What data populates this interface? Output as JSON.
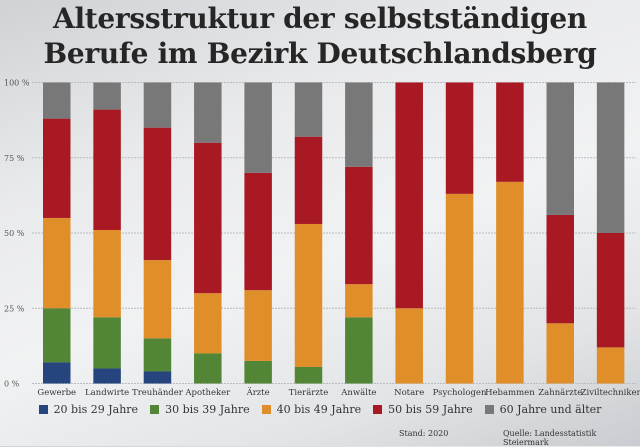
{
  "title": {
    "line1": "Altersstruktur der selbstständigen",
    "line2": "Berufe im Bezirk Deutschlandsberg"
  },
  "footer": {
    "stand": "Stand: 2020",
    "quelle": "Quelle: Landesstatistik Steiermark"
  },
  "chart_data": {
    "type": "bar",
    "stacked": true,
    "title": "Altersstruktur der selbstständigen Berufe im Bezirk Deutschlandsberg",
    "xlabel": "",
    "ylabel": "",
    "ylim": [
      0,
      100
    ],
    "yticks": [
      0,
      25,
      50,
      75,
      100
    ],
    "ytick_labels": [
      "0 %",
      "25 %",
      "50 %",
      "75 %",
      "100 %"
    ],
    "grid": true,
    "legend_position": "bottom",
    "categories": [
      "Gewerbe",
      "Landwirte",
      "Treuhänder",
      "Apotheker",
      "Ärzte",
      "Tierärzte",
      "Anwälte",
      "Notare",
      "Psychologen",
      "Hebammen",
      "Zahnärzte",
      "Ziviltechniker"
    ],
    "series": [
      {
        "name": "20 bis 29 Jahre",
        "color": "#26447e",
        "values": [
          7,
          5,
          4,
          0,
          0,
          0,
          0,
          0,
          0,
          0,
          0,
          0
        ]
      },
      {
        "name": "30 bis 39 Jahre",
        "color": "#528535",
        "values": [
          18,
          17,
          11,
          10,
          7.5,
          5.5,
          22,
          0,
          0,
          0,
          0,
          0
        ]
      },
      {
        "name": "40 bis 49 Jahre",
        "color": "#df8e2a",
        "values": [
          30,
          29,
          26,
          20,
          23.5,
          47.5,
          11,
          25,
          63,
          67,
          20,
          12
        ]
      },
      {
        "name": "50 bis 59 Jahre",
        "color": "#a91923",
        "values": [
          33,
          40,
          44,
          50,
          39,
          29,
          39,
          75,
          37,
          33,
          36,
          38
        ]
      },
      {
        "name": "60 Jahre und älter",
        "color": "#787878",
        "values": [
          12,
          9,
          15,
          20,
          30,
          18,
          28,
          0,
          0,
          0,
          44,
          50
        ]
      }
    ]
  }
}
